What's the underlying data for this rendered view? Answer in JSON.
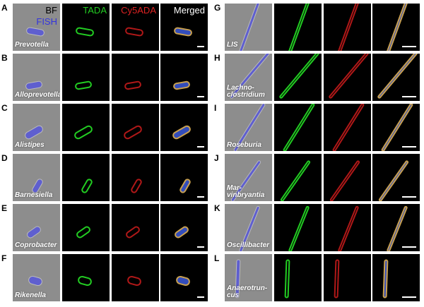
{
  "headers": {
    "bf": "BF",
    "fish": "FISH",
    "tada": "TADA",
    "cy5ada": "Cy5ADA",
    "merged": "Merged"
  },
  "colors": {
    "bf_text": "#000000",
    "fish": "#3333dd",
    "tada": "#22cc22",
    "cy5ada": "#dd2222",
    "merged": "#ffffff",
    "bf_background": "#8d8d8d",
    "fluor_background": "#000000"
  },
  "left_rows": [
    {
      "letter": "A",
      "name": "Prevotella"
    },
    {
      "letter": "B",
      "name": "Alloprevotella"
    },
    {
      "letter": "C",
      "name": "Alistipes"
    },
    {
      "letter": "D",
      "name": "Barnesiella"
    },
    {
      "letter": "E",
      "name": "Coprobacter"
    },
    {
      "letter": "F",
      "name": "Rikenella"
    }
  ],
  "right_rows": [
    {
      "letter": "G",
      "name": "LIS"
    },
    {
      "letter": "H",
      "name": "Lachno-\nclostridium"
    },
    {
      "letter": "I",
      "name": "Roseburia"
    },
    {
      "letter": "J",
      "name": "Mar-\nvinbryantia"
    },
    {
      "letter": "K",
      "name": "Oscillibacter"
    },
    {
      "letter": "L",
      "name": "Anaerotrun-\ncus"
    }
  ]
}
